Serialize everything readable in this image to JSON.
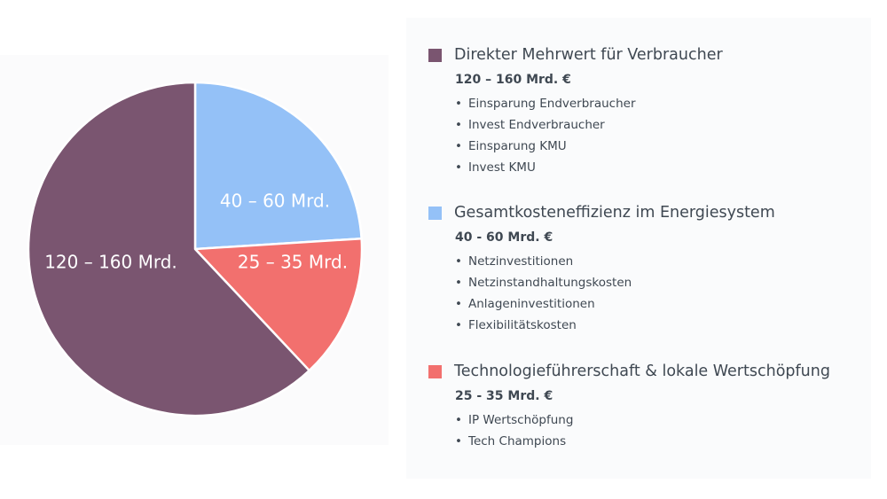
{
  "chart_data": {
    "type": "pie",
    "slices": [
      {
        "label": "120 – 160 Mrd.",
        "value": 62,
        "color": "#7a5570"
      },
      {
        "label": "40 – 60 Mrd.",
        "value": 24,
        "color": "#94c1f7"
      },
      {
        "label": "25 – 35 Mrd.",
        "value": 14,
        "color": "#f2706e"
      }
    ]
  },
  "legend": [
    {
      "title": "Direkter Mehrwert für Verbraucher",
      "value": "120 – 160 Mrd. €",
      "color": "#7a5570",
      "items": [
        "Einsparung Endverbraucher",
        "Invest Endverbraucher",
        "Einsparung KMU",
        "Invest KMU"
      ]
    },
    {
      "title": "Gesamtkosteneffizienz im Energiesystem",
      "value": "40 - 60 Mrd. €",
      "color": "#94c1f7",
      "items": [
        "Netzinvestitionen",
        "Netzinstandhaltungskosten",
        "Anlageninvestitionen",
        "Flexibilitätskosten"
      ]
    },
    {
      "title": "Technologieführerschaft & lokale Wertschöpfung",
      "value": "25 - 35 Mrd. €",
      "color": "#f2706e",
      "items": [
        "IP Wertschöpfung",
        "Tech Champions"
      ]
    }
  ]
}
